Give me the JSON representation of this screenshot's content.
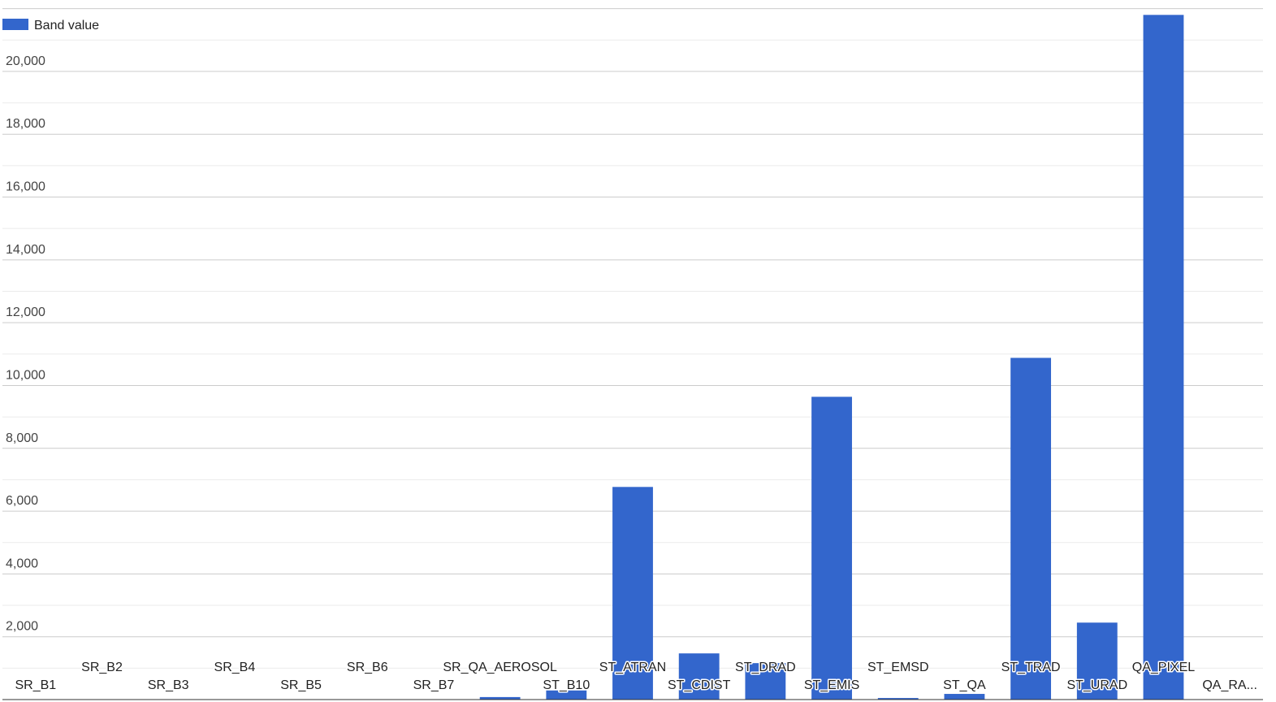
{
  "chart_data": {
    "type": "bar",
    "categories": [
      "SR_B1",
      "SR_B2",
      "SR_B3",
      "SR_B4",
      "SR_B5",
      "SR_B6",
      "SR_B7",
      "SR_QA_AEROSOL",
      "ST_B10",
      "ST_ATRAN",
      "ST_CDIST",
      "ST_DRAD",
      "ST_EMIS",
      "ST_EMSD",
      "ST_QA",
      "ST_TRAD",
      "ST_URAD",
      "QA_PIXEL",
      "QA_RA..."
    ],
    "series": [
      {
        "name": "Band value",
        "color": "#3366cc",
        "values": [
          0,
          0,
          0,
          0,
          0,
          0,
          0,
          80,
          290,
          6770,
          1470,
          1160,
          9640,
          50,
          180,
          10880,
          2450,
          21800,
          0
        ]
      }
    ],
    "ylim": [
      0,
      22000
    ],
    "yticks": [
      {
        "value": 2000,
        "label": "2,000"
      },
      {
        "value": 4000,
        "label": "4,000"
      },
      {
        "value": 6000,
        "label": "6,000"
      },
      {
        "value": 8000,
        "label": "8,000"
      },
      {
        "value": 10000,
        "label": "10,000"
      },
      {
        "value": 12000,
        "label": "12,000"
      },
      {
        "value": 14000,
        "label": "14,000"
      },
      {
        "value": 16000,
        "label": "16,000"
      },
      {
        "value": 18000,
        "label": "18,000"
      },
      {
        "value": 20000,
        "label": "20,000"
      }
    ],
    "minor_yticks": [
      1000,
      3000,
      5000,
      7000,
      9000,
      11000,
      13000,
      15000,
      17000,
      19000,
      21000
    ],
    "grid": true,
    "legend": "top-left"
  }
}
